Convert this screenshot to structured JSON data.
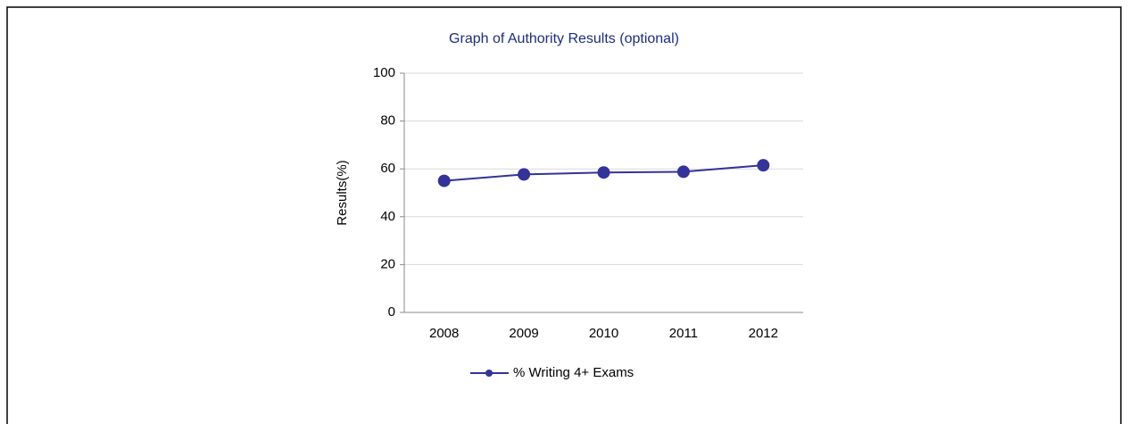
{
  "chart_data": {
    "type": "line",
    "title": "Graph of Authority Results (optional)",
    "y_label": "Results(%)",
    "categories": [
      "2008",
      "2009",
      "2010",
      "2011",
      "2012"
    ],
    "series": [
      {
        "name": "% Writing 4+ Exams",
        "color": "#333399",
        "values": [
          55,
          57.7,
          58.5,
          58.8,
          61.5
        ]
      }
    ],
    "ylim": [
      0,
      100
    ],
    "yticks": [
      0,
      20,
      40,
      60,
      80,
      100
    ],
    "grid": true,
    "legend": "bottom"
  }
}
